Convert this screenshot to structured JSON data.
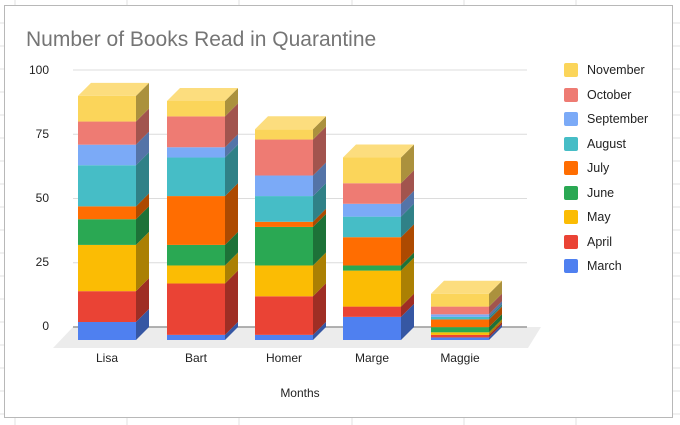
{
  "chart_data": {
    "type": "bar",
    "subtype": "stacked-3d",
    "title": "Number of Books Read in Quarantine",
    "xlabel": "Months",
    "ylabel": "",
    "ylim": [
      0,
      100
    ],
    "yticks": [
      0,
      25,
      50,
      75,
      100
    ],
    "grid": true,
    "legend_position": "right",
    "categories": [
      "Lisa",
      "Bart",
      "Homer",
      "Marge",
      "Maggie"
    ],
    "series": [
      {
        "name": "March",
        "color": "#4F80F0",
        "values": [
          7,
          2,
          2,
          9,
          1
        ]
      },
      {
        "name": "April",
        "color": "#EA4335",
        "values": [
          12,
          20,
          15,
          4,
          1
        ]
      },
      {
        "name": "May",
        "color": "#FBBC04",
        "values": [
          18,
          7,
          12,
          14,
          1
        ]
      },
      {
        "name": "June",
        "color": "#2AA853",
        "values": [
          10,
          8,
          15,
          2,
          2
        ]
      },
      {
        "name": "July",
        "color": "#FF6D01",
        "values": [
          5,
          19,
          2,
          11,
          3
        ]
      },
      {
        "name": "August",
        "color": "#46BDC6",
        "values": [
          16,
          15,
          10,
          8,
          1
        ]
      },
      {
        "name": "September",
        "color": "#7BAAF7",
        "values": [
          8,
          4,
          8,
          5,
          1
        ]
      },
      {
        "name": "October",
        "color": "#EE7B73",
        "values": [
          9,
          12,
          14,
          8,
          3
        ]
      },
      {
        "name": "November",
        "color": "#FBD55A",
        "values": [
          10,
          6,
          4,
          10,
          5
        ]
      }
    ],
    "legend_order": [
      "November",
      "October",
      "September",
      "August",
      "July",
      "June",
      "May",
      "April",
      "March"
    ]
  },
  "axis": {
    "y_ticks": [
      "100",
      "75",
      "50",
      "25",
      "0"
    ],
    "x_labels": [
      "Lisa",
      "Bart",
      "Homer",
      "Marge",
      "Maggie"
    ],
    "x_title": "Months"
  },
  "legend": {
    "items": [
      {
        "label": "November",
        "color": "#FBD55A"
      },
      {
        "label": "October",
        "color": "#EE7B73"
      },
      {
        "label": "September",
        "color": "#7BAAF7"
      },
      {
        "label": "August",
        "color": "#46BDC6"
      },
      {
        "label": "July",
        "color": "#FF6D01"
      },
      {
        "label": "June",
        "color": "#2AA853"
      },
      {
        "label": "May",
        "color": "#FBBC04"
      },
      {
        "label": "April",
        "color": "#EA4335"
      },
      {
        "label": "March",
        "color": "#4F80F0"
      }
    ]
  }
}
